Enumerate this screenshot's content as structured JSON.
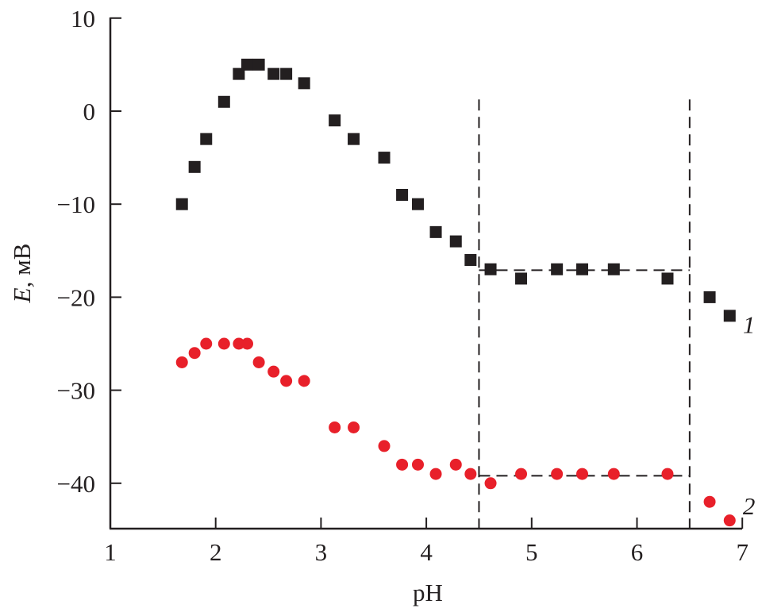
{
  "chart_data": {
    "type": "scatter",
    "title": "",
    "xlabel": "pH",
    "ylabel_italic": "E",
    "ylabel_rest": ", мВ",
    "xlim": [
      1,
      7
    ],
    "ylim": [
      -45,
      10
    ],
    "xticks": [
      1,
      2,
      3,
      4,
      5,
      6,
      7
    ],
    "yticks": [
      10,
      0,
      -10,
      -20,
      -30,
      -40
    ],
    "ytick_labels": [
      "10",
      "0",
      "−10",
      "−20",
      "−30",
      "−40"
    ],
    "grid": false,
    "series": [
      {
        "name": "1",
        "marker": "square",
        "color": "#231f20",
        "x": [
          1.68,
          1.8,
          1.91,
          2.08,
          2.22,
          2.3,
          2.41,
          2.55,
          2.67,
          2.84,
          3.13,
          3.31,
          3.6,
          3.77,
          3.92,
          4.09,
          4.28,
          4.42,
          4.61,
          4.9,
          5.24,
          5.48,
          5.78,
          6.29,
          6.69,
          6.88
        ],
        "y": [
          -10,
          -6,
          -3,
          1,
          4,
          5,
          5,
          4,
          4,
          3,
          -1,
          -3,
          -5,
          -9,
          -10,
          -13,
          -14,
          -16,
          -17,
          -18,
          -17,
          -17,
          -17,
          -18,
          -20,
          -22
        ]
      },
      {
        "name": "2",
        "marker": "circle",
        "color": "#e8202a",
        "x": [
          1.68,
          1.8,
          1.91,
          2.08,
          2.22,
          2.3,
          2.41,
          2.55,
          2.67,
          2.84,
          3.13,
          3.31,
          3.6,
          3.77,
          3.92,
          4.09,
          4.28,
          4.42,
          4.61,
          4.9,
          5.24,
          5.48,
          5.78,
          6.29,
          6.69,
          6.88
        ],
        "y": [
          -27,
          -26,
          -25,
          -25,
          -25,
          -25,
          -27,
          -28,
          -29,
          -29,
          -34,
          -34,
          -36,
          -38,
          -38,
          -39,
          -38,
          -39,
          -40,
          -39,
          -39,
          -39,
          -39,
          -39,
          -42,
          -44
        ]
      }
    ],
    "reference_lines": {
      "vertical_x": [
        4.5,
        6.5
      ],
      "vertical_top_y": 1,
      "horizontal": [
        {
          "y": -17.1,
          "x_from": 4.5,
          "x_to": 6.5
        },
        {
          "y": -39.2,
          "x_from": 4.5,
          "x_to": 6.5
        }
      ]
    },
    "series_labels": [
      {
        "text": "1",
        "x": 7.05,
        "y": -23
      },
      {
        "text": "2",
        "x": 7.05,
        "y": -42.5
      }
    ]
  }
}
